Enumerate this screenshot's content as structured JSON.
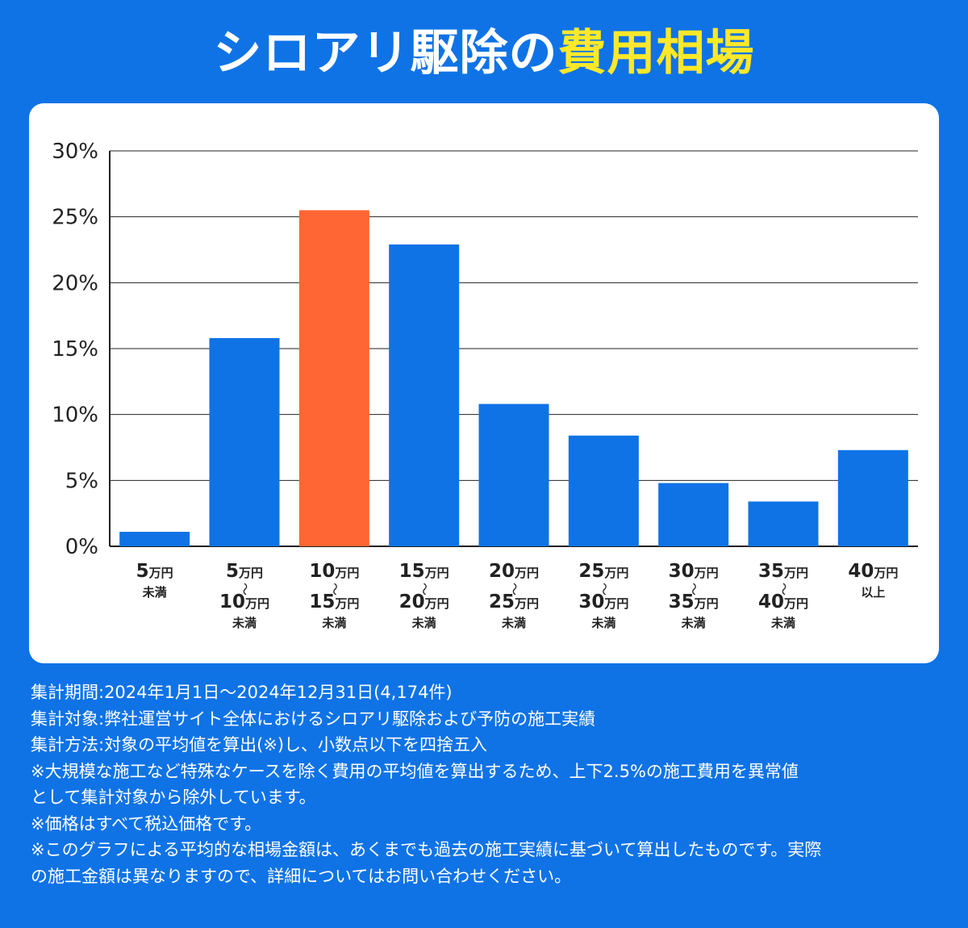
{
  "title": {
    "main": "シロアリ駆除の",
    "highlight": "費用相場"
  },
  "colors": {
    "background": "#0F73E6",
    "bar_default": "#0F73E6",
    "bar_highlight": "#FF6633",
    "title_highlight": "#FFE829",
    "text_dark": "#222222"
  },
  "chart_data": {
    "type": "bar",
    "title": "",
    "xlabel": "",
    "ylabel": "",
    "ylim": [
      0,
      30
    ],
    "yticks": [
      "0%",
      "5%",
      "10%",
      "15%",
      "20%",
      "25%",
      "30%"
    ],
    "grid": true,
    "legend": "none",
    "categories": [
      {
        "lines": [
          "5万円",
          "未満"
        ]
      },
      {
        "lines": [
          "5万円",
          "〜",
          "10万円",
          "未満"
        ]
      },
      {
        "lines": [
          "10万円",
          "〜",
          "15万円",
          "未満"
        ]
      },
      {
        "lines": [
          "15万円",
          "〜",
          "20万円",
          "未満"
        ]
      },
      {
        "lines": [
          "20万円",
          "〜",
          "25万円",
          "未満"
        ]
      },
      {
        "lines": [
          "25万円",
          "〜",
          "30万円",
          "未満"
        ]
      },
      {
        "lines": [
          "30万円",
          "〜",
          "35万円",
          "未満"
        ]
      },
      {
        "lines": [
          "35万円",
          "〜",
          "40万円",
          "未満"
        ]
      },
      {
        "lines": [
          "40万円",
          "以上"
        ]
      }
    ],
    "values": [
      1.1,
      15.8,
      25.5,
      22.9,
      10.8,
      8.4,
      4.8,
      3.4,
      7.3
    ],
    "highlight_index": 2
  },
  "notes": [
    "集計期間:2024年1月1日〜2024年12月31日(4,174件)",
    "集計対象:弊社運営サイト全体におけるシロアリ駆除および予防の施工実績",
    "集計方法:対象の平均値を算出(※)し、小数点以下を四捨五入",
    "※大規模な施工など特殊なケースを除く費用の平均値を算出するため、上下2.5%の施工費用を異常値",
    "として集計対象から除外しています。",
    "※価格はすべて税込価格です。",
    "※このグラフによる平均的な相場金額は、あくまでも過去の施工実績に基づいて算出したものです。実際",
    "の施工金額は異なりますので、詳細についてはお問い合わせください。"
  ]
}
